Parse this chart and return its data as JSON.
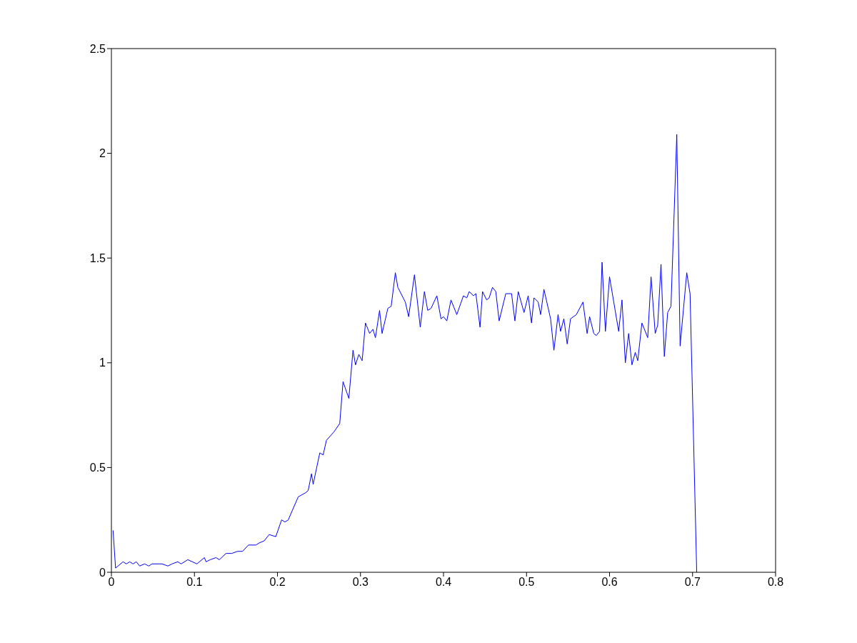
{
  "chart_data": {
    "type": "line",
    "x": [
      0.002,
      0.005,
      0.014,
      0.018,
      0.022,
      0.026,
      0.03,
      0.034,
      0.04,
      0.045,
      0.049,
      0.057,
      0.061,
      0.068,
      0.073,
      0.08,
      0.084,
      0.092,
      0.103,
      0.112,
      0.114,
      0.119,
      0.126,
      0.13,
      0.138,
      0.145,
      0.152,
      0.158,
      0.165,
      0.174,
      0.178,
      0.184,
      0.19,
      0.198,
      0.205,
      0.209,
      0.213,
      0.225,
      0.234,
      0.237,
      0.241,
      0.243,
      0.251,
      0.255,
      0.259,
      0.268,
      0.275,
      0.279,
      0.286,
      0.291,
      0.294,
      0.298,
      0.302,
      0.306,
      0.311,
      0.315,
      0.318,
      0.323,
      0.326,
      0.333,
      0.337,
      0.342,
      0.345,
      0.354,
      0.358,
      0.365,
      0.372,
      0.377,
      0.381,
      0.385,
      0.392,
      0.397,
      0.4,
      0.404,
      0.409,
      0.416,
      0.424,
      0.428,
      0.431,
      0.436,
      0.439,
      0.444,
      0.447,
      0.452,
      0.455,
      0.459,
      0.463,
      0.467,
      0.475,
      0.482,
      0.486,
      0.49,
      0.497,
      0.502,
      0.506,
      0.509,
      0.514,
      0.517,
      0.521,
      0.529,
      0.533,
      0.538,
      0.541,
      0.545,
      0.549,
      0.553,
      0.56,
      0.568,
      0.573,
      0.576,
      0.581,
      0.584,
      0.588,
      0.591,
      0.595,
      0.6,
      0.611,
      0.615,
      0.619,
      0.623,
      0.627,
      0.631,
      0.634,
      0.639,
      0.646,
      0.65,
      0.655,
      0.658,
      0.662,
      0.666,
      0.67,
      0.674,
      0.681,
      0.685,
      0.693,
      0.697,
      0.705
    ],
    "series": [
      {
        "color": "#0000ff",
        "values": [
          0.2,
          0.02,
          0.05,
          0.04,
          0.05,
          0.04,
          0.05,
          0.03,
          0.04,
          0.03,
          0.04,
          0.04,
          0.04,
          0.03,
          0.04,
          0.05,
          0.04,
          0.06,
          0.04,
          0.07,
          0.05,
          0.06,
          0.07,
          0.06,
          0.09,
          0.09,
          0.1,
          0.1,
          0.13,
          0.13,
          0.14,
          0.15,
          0.18,
          0.17,
          0.25,
          0.24,
          0.25,
          0.36,
          0.38,
          0.39,
          0.47,
          0.42,
          0.57,
          0.56,
          0.63,
          0.67,
          0.71,
          0.91,
          0.83,
          1.06,
          0.99,
          1.04,
          1.01,
          1.19,
          1.14,
          1.16,
          1.12,
          1.25,
          1.14,
          1.26,
          1.27,
          1.43,
          1.36,
          1.29,
          1.22,
          1.42,
          1.17,
          1.34,
          1.25,
          1.26,
          1.32,
          1.21,
          1.22,
          1.2,
          1.3,
          1.23,
          1.32,
          1.31,
          1.34,
          1.32,
          1.33,
          1.17,
          1.34,
          1.3,
          1.31,
          1.36,
          1.34,
          1.2,
          1.33,
          1.33,
          1.2,
          1.34,
          1.24,
          1.32,
          1.19,
          1.31,
          1.29,
          1.23,
          1.35,
          1.21,
          1.06,
          1.23,
          1.15,
          1.21,
          1.09,
          1.21,
          1.23,
          1.29,
          1.14,
          1.22,
          1.14,
          1.13,
          1.15,
          1.48,
          1.15,
          1.41,
          1.15,
          1.3,
          1.0,
          1.14,
          0.99,
          1.05,
          1.01,
          1.19,
          1.12,
          1.41,
          1.14,
          1.18,
          1.47,
          1.03,
          1.24,
          1.27,
          2.09,
          1.08,
          1.43,
          1.33,
          0
        ]
      }
    ],
    "xlim": [
      0,
      0.8
    ],
    "xticks": [
      0,
      0.1,
      0.2,
      0.3,
      0.4,
      0.5,
      0.6,
      0.7,
      0.8
    ],
    "ylim": [
      0,
      2.5
    ],
    "yticks": [
      0,
      0.5,
      1,
      1.5,
      2,
      2.5
    ],
    "marker": "none",
    "line_style": "solid"
  }
}
